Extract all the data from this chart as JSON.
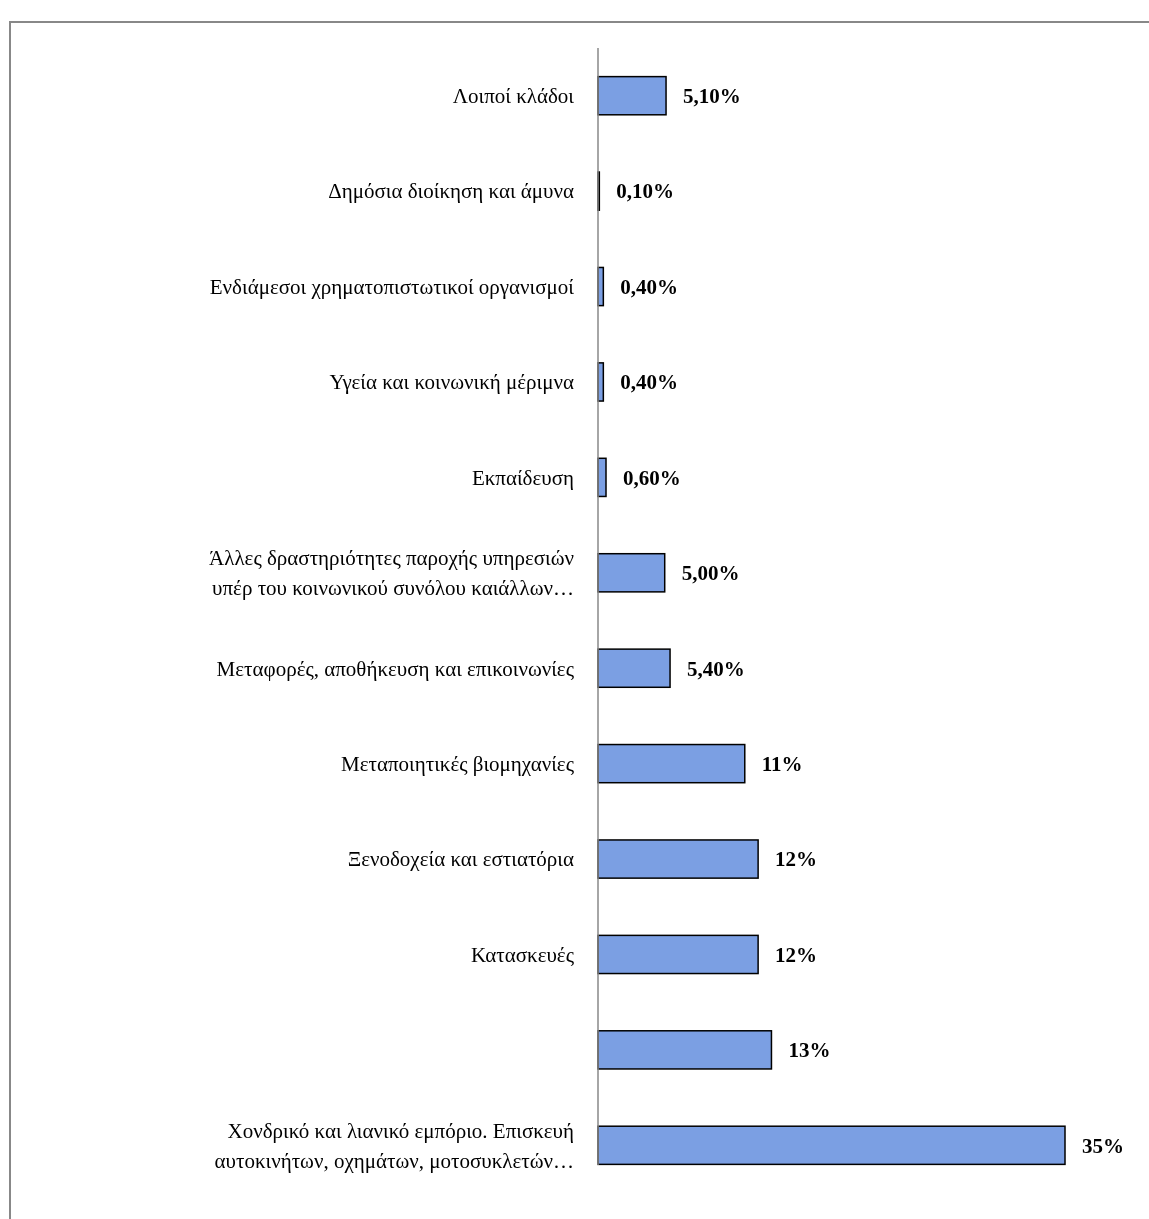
{
  "chart_data": {
    "type": "bar",
    "orientation": "horizontal",
    "color": "#7b9fe3",
    "categories": [
      "Λοιποί κλάδοι",
      "Δημόσια διοίκηση και άμυνα",
      "Ενδιάμεσοι χρηματοπιστωτικοί οργανισμοί",
      "Υγεία και κοινωνική μέριμνα",
      "Εκπαίδευση",
      "Άλλες δραστηριότητες παροχής υπηρεσιών υπέρ του κοινωνικού συνόλου καιάλλων…",
      "Μεταφορές, αποθήκευση και επικοινωνίες",
      "Μεταποιητικές βιομηχανίες",
      "Ξενοδοχεία και εστιατόρια",
      "Κατασκευές",
      null,
      "Χονδρικό και λιανικό εμπόριο. Επισκευή αυτοκινήτων, οχημάτων, μοτοσυκλετών…"
    ],
    "values": [
      5.1,
      0.1,
      0.4,
      0.4,
      0.6,
      5.0,
      5.4,
      11,
      12,
      12,
      13,
      35
    ],
    "value_labels": [
      "5,10%",
      "0,10%",
      "0,40%",
      "0,40%",
      "0,60%",
      "5,00%",
      "5,40%",
      "11%",
      "12%",
      "12%",
      "13%",
      "35%"
    ]
  }
}
